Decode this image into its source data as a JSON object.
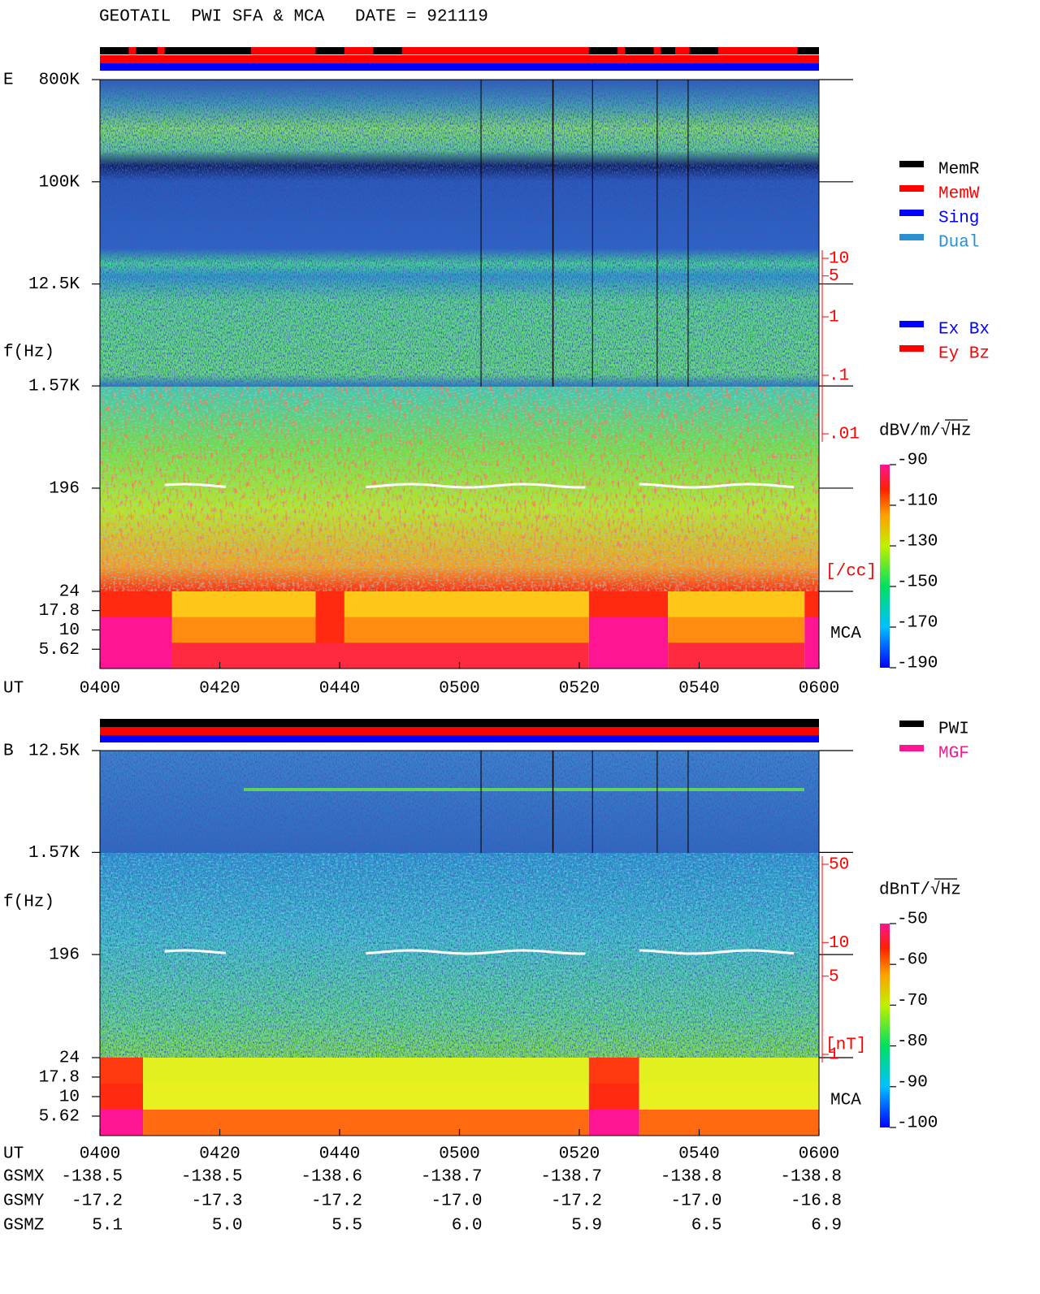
{
  "header": {
    "title": "GEOTAIL  PWI SFA & MCA   DATE = 921119"
  },
  "chart_data": [
    {
      "type": "spectrogram",
      "panel_label": "E",
      "y_label": "f(Hz)",
      "x_label": "UT",
      "xticks": [
        "0400",
        "0420",
        "0440",
        "0500",
        "0520",
        "0540",
        "0600"
      ],
      "log_y": true,
      "ylim": [
        24,
        800000
      ],
      "yticks": [
        {
          "value": 800000,
          "label": "800K"
        },
        {
          "value": 100000,
          "label": "100K"
        },
        {
          "value": 12500,
          "label": "12.5K"
        },
        {
          "value": 1570,
          "label": "1.57K"
        },
        196,
        24
      ],
      "mca": {
        "label": "MCA",
        "ylim": [
          3.16,
          31.6
        ],
        "yticks": [
          17.8,
          10,
          5.62
        ]
      },
      "density_scale": {
        "label": "[/cc]",
        "color": "#ff0000",
        "ylim": [
          0.01,
          10
        ],
        "yticks": [
          10,
          5,
          1,
          {
            "value": 0.1,
            "label": ".1"
          },
          {
            "value": 0.01,
            "label": ".01"
          }
        ]
      },
      "colorbar": {
        "label": "dBV/m/√Hz",
        "lim": [
          -190,
          -90
        ],
        "ticks": [
          -90,
          -110,
          -130,
          -150,
          -170,
          -190
        ]
      },
      "legends": [
        [
          {
            "name": "MemR",
            "color": "#000000"
          },
          {
            "name": "MemW",
            "color": "#ff0000"
          },
          {
            "name": "Sing",
            "color": "#0000ff"
          },
          {
            "name": "Dual",
            "color": "#2a8fd0"
          }
        ],
        [
          {
            "name": "Ex Bx",
            "color": "#0000ff"
          },
          {
            "name": "Ey Bz",
            "color": "#ff0000"
          }
        ]
      ]
    },
    {
      "type": "spectrogram",
      "panel_label": "B",
      "y_label": "f(Hz)",
      "x_label": "UT",
      "xticks": [
        "0400",
        "0420",
        "0440",
        "0500",
        "0520",
        "0540",
        "0600"
      ],
      "log_y": true,
      "ylim": [
        24,
        12500
      ],
      "yticks": [
        {
          "value": 12500,
          "label": "12.5K"
        },
        {
          "value": 1570,
          "label": "1.57K"
        },
        196,
        24
      ],
      "mca": {
        "label": "MCA",
        "ylim": [
          3.16,
          31.6
        ],
        "yticks": [
          17.8,
          10,
          5.62
        ]
      },
      "density_scale": {
        "label": "[nT]",
        "color": "#ff0000",
        "ylim": [
          1,
          50
        ],
        "yticks": [
          50,
          10,
          5,
          1
        ]
      },
      "colorbar": {
        "label": "dBnT/√Hz",
        "lim": [
          -100,
          -50
        ],
        "ticks": [
          -50,
          -60,
          -70,
          -80,
          -90,
          -100
        ]
      },
      "legends": [
        [
          {
            "name": "PWI",
            "color": "#000000"
          },
          {
            "name": "MGF",
            "color": "#ff1493"
          }
        ]
      ]
    }
  ],
  "orbit": {
    "rows": [
      {
        "label": "GSMX",
        "values": [
          "-138.5",
          "-138.5",
          "-138.6",
          "-138.7",
          "-138.7",
          "-138.8",
          "-138.8"
        ]
      },
      {
        "label": "GSMY",
        "values": [
          "-17.2",
          "-17.3",
          "-17.2",
          "-17.0",
          "-17.2",
          "-17.0",
          "-16.8"
        ]
      },
      {
        "label": "GSMZ",
        "values": [
          "5.1",
          "5.0",
          "5.5",
          "6.0",
          "5.9",
          "6.5",
          "6.9"
        ]
      }
    ]
  }
}
